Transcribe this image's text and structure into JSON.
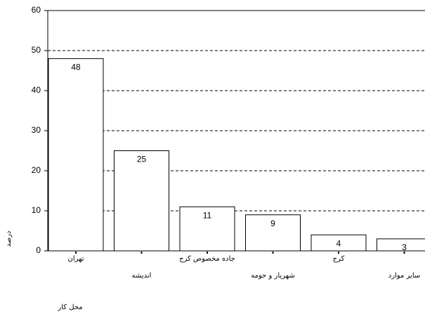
{
  "chart_data": {
    "type": "bar",
    "x_label": "محل کار",
    "y_label": "درصد",
    "categories": [
      "تهران",
      "اندیشه",
      "جاده مخصوص کرج",
      "شهریار و حومه",
      "کرج",
      "سایر موارد"
    ],
    "values": [
      48,
      25,
      11,
      9,
      4,
      3
    ],
    "color": "#ffffff",
    "ylim": [
      0,
      60
    ],
    "yticks": [
      0,
      10,
      20,
      30,
      40,
      50,
      60
    ],
    "grid": true
  }
}
